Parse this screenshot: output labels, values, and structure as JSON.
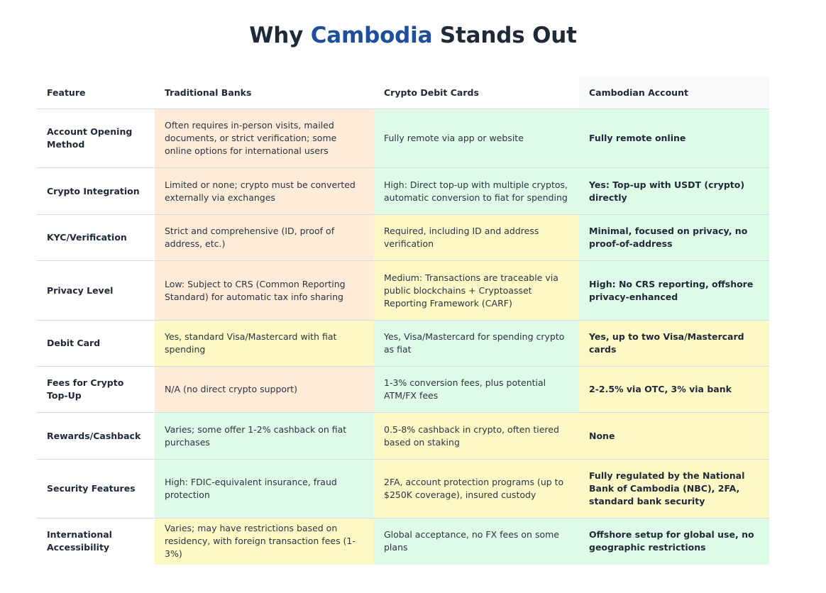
{
  "heading": {
    "prefix": "Why ",
    "accent": "Cambodia",
    "suffix": " Stands Out"
  },
  "colors": {
    "accent": "#1d4f9a",
    "orange": "#feebd8",
    "green": "#ddfbe6",
    "yellow": "#fdf9c6"
  },
  "table": {
    "headers": [
      "Feature",
      "Traditional Banks",
      "Crypto Debit Cards",
      "Cambodian Account"
    ],
    "rows": [
      {
        "feature": "Account Opening Method",
        "cells": [
          {
            "text": "Often requires in-person visits, mailed documents, or strict verification; some online options for international users",
            "tone": "orange"
          },
          {
            "text": "Fully remote via app or website",
            "tone": "green"
          },
          {
            "text": "Fully remote online",
            "tone": "green"
          }
        ]
      },
      {
        "feature": "Crypto Integration",
        "cells": [
          {
            "text": "Limited or none; crypto must be converted externally via exchanges",
            "tone": "orange"
          },
          {
            "text": "High: Direct top-up with multiple cryptos, automatic conversion to fiat for spending",
            "tone": "green"
          },
          {
            "text": "Yes: Top-up with USDT (crypto) directly",
            "tone": "green"
          }
        ]
      },
      {
        "feature": "KYC/Verification",
        "cells": [
          {
            "text": "Strict and comprehensive (ID, proof of address, etc.)",
            "tone": "orange"
          },
          {
            "text": "Required, including ID and address verification",
            "tone": "yellow"
          },
          {
            "text": "Minimal, focused on privacy, no proof-of-address",
            "tone": "green"
          }
        ]
      },
      {
        "feature": "Privacy Level",
        "cells": [
          {
            "text": "Low: Subject to CRS (Common Reporting Standard) for automatic tax info sharing",
            "tone": "orange"
          },
          {
            "text": "Medium: Transactions are traceable via public blockchains + Cryptoasset Reporting Framework (CARF)",
            "tone": "yellow"
          },
          {
            "text": "High: No CRS reporting, offshore privacy-enhanced",
            "tone": "green"
          }
        ]
      },
      {
        "feature": "Debit Card",
        "cells": [
          {
            "text": "Yes, standard Visa/Mastercard with fiat spending",
            "tone": "yellow"
          },
          {
            "text": "Yes, Visa/Mastercard for spending crypto as fiat",
            "tone": "green"
          },
          {
            "text": "Yes, up to two Visa/Mastercard cards",
            "tone": "yellow"
          }
        ]
      },
      {
        "feature": "Fees for Crypto Top-Up",
        "cells": [
          {
            "text": "N/A (no direct crypto support)",
            "tone": "orange"
          },
          {
            "text": "1-3% conversion fees, plus potential ATM/FX fees",
            "tone": "green"
          },
          {
            "text": "2-2.5% via OTC, 3% via bank",
            "tone": "yellow"
          }
        ]
      },
      {
        "feature": "Rewards/Cashback",
        "cells": [
          {
            "text": "Varies; some offer 1-2% cashback on fiat purchases",
            "tone": "green"
          },
          {
            "text": "0.5-8% cashback in crypto, often tiered based on staking",
            "tone": "yellow"
          },
          {
            "text": "None",
            "tone": "yellow"
          }
        ]
      },
      {
        "feature": "Security Features",
        "cells": [
          {
            "text": "High: FDIC-equivalent insurance, fraud protection",
            "tone": "green"
          },
          {
            "text": "2FA, account protection programs (up to $250K coverage), insured custody",
            "tone": "yellow"
          },
          {
            "text": "Fully regulated by the National Bank of Cambodia (NBC), 2FA, standard bank security",
            "tone": "yellow"
          }
        ]
      },
      {
        "feature": "International Accessibility",
        "cells": [
          {
            "text": "Varies; may have restrictions based on residency, with foreign transaction fees (1-3%)",
            "tone": "yellow"
          },
          {
            "text": "Global acceptance, no FX fees on some plans",
            "tone": "green"
          },
          {
            "text": "Offshore setup for global use, no geographic restrictions",
            "tone": "green"
          }
        ]
      }
    ]
  }
}
